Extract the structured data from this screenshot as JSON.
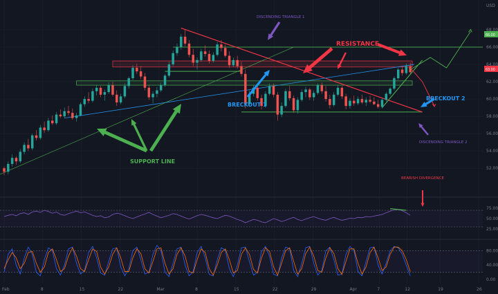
{
  "chart_data": {
    "type": "candlestick",
    "price_axis": {
      "unit": "USD",
      "ticks": [
        "68.00",
        "66.00",
        "64.00",
        "62.00",
        "60.00",
        "58.00",
        "56.00",
        "54.00",
        "52.00"
      ],
      "ylim": [
        50.5,
        69.2
      ]
    },
    "time_axis": {
      "ticks": [
        "Feb",
        "8",
        "15",
        "22",
        "Mar",
        "8",
        "15",
        "22",
        "29",
        "Apr",
        "7",
        "12",
        "19",
        "26"
      ],
      "xlim": [
        0,
        118
      ]
    },
    "last_price_labels": {
      "upper": "66.00",
      "current": "63.00"
    },
    "candles": [
      [
        0,
        52.0,
        52.2,
        51.2,
        51.6
      ],
      [
        1,
        51.6,
        52.8,
        51.3,
        52.5
      ],
      [
        2,
        52.5,
        53.6,
        52.2,
        53.2
      ],
      [
        3,
        53.2,
        53.4,
        52.4,
        52.8
      ],
      [
        4,
        52.8,
        54.2,
        52.6,
        53.9
      ],
      [
        5,
        53.9,
        55.0,
        53.6,
        54.7
      ],
      [
        6,
        54.7,
        55.4,
        54.0,
        54.3
      ],
      [
        7,
        54.3,
        56.0,
        54.1,
        55.8
      ],
      [
        8,
        55.8,
        56.4,
        55.2,
        55.5
      ],
      [
        9,
        55.5,
        57.0,
        55.3,
        56.7
      ],
      [
        10,
        56.7,
        57.4,
        56.1,
        56.4
      ],
      [
        11,
        56.4,
        57.8,
        56.2,
        57.5
      ],
      [
        12,
        57.5,
        58.1,
        57.0,
        57.2
      ],
      [
        13,
        57.2,
        58.5,
        57.0,
        58.2
      ],
      [
        14,
        58.2,
        58.8,
        57.8,
        58.0
      ],
      [
        15,
        58.0,
        59.0,
        57.8,
        58.6
      ],
      [
        16,
        58.6,
        59.2,
        58.1,
        58.4
      ],
      [
        17,
        58.4,
        58.9,
        57.6,
        57.8
      ],
      [
        18,
        57.8,
        58.4,
        57.4,
        58.1
      ],
      [
        19,
        58.1,
        59.6,
        58.0,
        59.4
      ],
      [
        20,
        59.4,
        60.3,
        59.1,
        60.0
      ],
      [
        21,
        60.0,
        60.8,
        59.5,
        59.8
      ],
      [
        22,
        59.8,
        61.2,
        59.6,
        60.9
      ],
      [
        23,
        60.9,
        61.6,
        60.4,
        61.3
      ],
      [
        24,
        61.3,
        61.5,
        60.2,
        60.5
      ],
      [
        25,
        60.5,
        61.1,
        59.8,
        60.8
      ],
      [
        26,
        60.8,
        61.9,
        60.6,
        61.6
      ],
      [
        27,
        61.6,
        62.0,
        60.3,
        60.5
      ],
      [
        28,
        60.5,
        61.0,
        59.2,
        59.6
      ],
      [
        29,
        59.6,
        60.6,
        59.4,
        60.3
      ],
      [
        30,
        60.3,
        61.8,
        60.1,
        61.5
      ],
      [
        31,
        61.5,
        62.6,
        61.2,
        62.4
      ],
      [
        32,
        62.4,
        63.9,
        62.2,
        63.6
      ],
      [
        33,
        63.6,
        64.1,
        62.9,
        63.2
      ],
      [
        34,
        63.2,
        63.8,
        62.3,
        62.6
      ],
      [
        35,
        62.6,
        63.0,
        61.0,
        61.3
      ],
      [
        36,
        61.3,
        61.6,
        59.9,
        60.2
      ],
      [
        37,
        60.2,
        60.9,
        59.5,
        60.6
      ],
      [
        38,
        60.6,
        61.4,
        60.2,
        61.0
      ],
      [
        39,
        61.0,
        61.9,
        60.8,
        61.6
      ],
      [
        40,
        61.6,
        62.9,
        61.4,
        62.7
      ],
      [
        41,
        62.7,
        64.3,
        62.5,
        64.0
      ],
      [
        42,
        64.0,
        65.6,
        63.8,
        65.3
      ],
      [
        43,
        65.3,
        66.4,
        65.0,
        66.0
      ],
      [
        44,
        66.0,
        67.5,
        65.7,
        67.2
      ],
      [
        45,
        67.2,
        68.0,
        66.1,
        66.4
      ],
      [
        46,
        66.4,
        66.8,
        64.8,
        65.1
      ],
      [
        47,
        65.1,
        65.8,
        63.8,
        64.2
      ],
      [
        48,
        64.2,
        64.8,
        63.4,
        64.5
      ],
      [
        49,
        64.5,
        65.8,
        64.3,
        65.5
      ],
      [
        50,
        65.5,
        66.2,
        64.9,
        65.2
      ],
      [
        51,
        65.2,
        65.6,
        64.1,
        64.4
      ],
      [
        52,
        64.4,
        65.4,
        64.2,
        65.1
      ],
      [
        53,
        65.1,
        66.6,
        64.9,
        66.3
      ],
      [
        54,
        66.3,
        66.8,
        65.5,
        65.9
      ],
      [
        55,
        65.9,
        66.3,
        64.8,
        65.0
      ],
      [
        56,
        65.0,
        65.5,
        63.6,
        63.9
      ],
      [
        57,
        63.9,
        64.8,
        63.7,
        64.5
      ],
      [
        58,
        64.5,
        65.0,
        63.5,
        63.8
      ],
      [
        59,
        63.8,
        64.3,
        62.6,
        62.9
      ],
      [
        60,
        62.9,
        63.4,
        58.9,
        59.4
      ],
      [
        61,
        59.4,
        61.0,
        59.1,
        60.6
      ],
      [
        62,
        60.6,
        61.6,
        60.3,
        61.3
      ],
      [
        63,
        61.3,
        61.7,
        59.8,
        60.1
      ],
      [
        64,
        60.1,
        60.5,
        58.8,
        59.2
      ],
      [
        65,
        59.2,
        60.9,
        59.0,
        60.6
      ],
      [
        66,
        60.6,
        61.8,
        60.4,
        61.5
      ],
      [
        67,
        61.5,
        61.8,
        60.2,
        60.5
      ],
      [
        68,
        60.5,
        60.8,
        57.5,
        58.2
      ],
      [
        69,
        58.2,
        59.6,
        57.9,
        59.2
      ],
      [
        70,
        59.2,
        61.2,
        59.0,
        60.9
      ],
      [
        71,
        60.9,
        61.5,
        59.8,
        60.1
      ],
      [
        72,
        60.1,
        60.4,
        58.4,
        58.7
      ],
      [
        73,
        58.7,
        60.2,
        58.3,
        59.9
      ],
      [
        74,
        59.9,
        61.1,
        59.7,
        60.8
      ],
      [
        75,
        60.8,
        61.4,
        60.2,
        61.1
      ],
      [
        76,
        61.1,
        61.3,
        59.9,
        60.2
      ],
      [
        77,
        60.2,
        61.0,
        59.8,
        60.7
      ],
      [
        78,
        60.7,
        61.8,
        60.5,
        61.6
      ],
      [
        79,
        61.6,
        61.9,
        60.6,
        60.9
      ],
      [
        80,
        60.9,
        61.5,
        59.7,
        60.0
      ],
      [
        81,
        60.0,
        60.5,
        58.9,
        59.3
      ],
      [
        82,
        59.3,
        60.8,
        59.1,
        60.5
      ],
      [
        83,
        60.5,
        61.6,
        60.3,
        61.3
      ],
      [
        84,
        61.3,
        61.5,
        60.0,
        60.3
      ],
      [
        85,
        60.3,
        60.6,
        58.8,
        59.2
      ],
      [
        86,
        59.2,
        60.1,
        58.9,
        59.8
      ],
      [
        87,
        59.8,
        60.4,
        59.2,
        59.5
      ],
      [
        88,
        59.5,
        60.3,
        59.3,
        60.0
      ],
      [
        89,
        60.0,
        60.5,
        59.4,
        59.6
      ],
      [
        90,
        59.6,
        60.2,
        59.2,
        59.9
      ],
      [
        91,
        59.9,
        60.4,
        59.5,
        59.7
      ],
      [
        92,
        59.7,
        60.2,
        59.3,
        59.4
      ],
      [
        93,
        59.4,
        59.9,
        58.9,
        59.1
      ],
      [
        94,
        59.1,
        60.1,
        58.9,
        59.9
      ],
      [
        95,
        59.9,
        60.8,
        59.7,
        60.6
      ],
      [
        96,
        60.6,
        61.4,
        60.4,
        61.2
      ],
      [
        97,
        61.2,
        62.6,
        61.0,
        62.4
      ],
      [
        98,
        62.4,
        63.6,
        62.2,
        63.4
      ],
      [
        99,
        63.4,
        63.8,
        62.7,
        63.0
      ],
      [
        100,
        63.0,
        64.1,
        62.8,
        63.8
      ],
      [
        101,
        63.8,
        64.2,
        62.9,
        63.1
      ]
    ],
    "rsi": [
      55,
      58,
      60,
      57,
      62,
      64,
      60,
      66,
      68,
      65,
      70,
      67,
      63,
      66,
      60,
      58,
      62,
      65,
      68,
      64,
      66,
      62,
      58,
      55,
      57,
      52,
      54,
      60,
      63,
      61,
      57,
      53,
      50,
      54,
      58,
      61,
      65,
      60,
      56,
      52,
      55,
      58,
      62,
      60,
      56,
      52,
      49,
      53,
      57,
      60,
      58,
      55,
      52,
      50,
      54,
      58,
      56,
      52,
      48,
      45,
      40,
      44,
      48,
      46,
      42,
      40,
      45,
      50,
      47,
      43,
      46,
      50,
      53,
      48,
      45,
      49,
      52,
      55,
      51,
      48,
      46,
      50,
      53,
      49,
      46,
      48,
      51,
      50,
      53,
      52,
      55,
      54,
      56,
      58,
      60,
      64,
      68,
      71,
      72,
      69,
      64,
      58
    ],
    "stoch_k": [
      20,
      70,
      85,
      40,
      15,
      60,
      90,
      70,
      20,
      10,
      55,
      88,
      80,
      30,
      12,
      40,
      85,
      90,
      45,
      15,
      25,
      75,
      92,
      60,
      18,
      12,
      50,
      85,
      88,
      35,
      10,
      30,
      80,
      90,
      55,
      15,
      20,
      70,
      95,
      80,
      20,
      8,
      45,
      85,
      90,
      40,
      10,
      22,
      75,
      92,
      60,
      14,
      10,
      55,
      88,
      82,
      30,
      8,
      40,
      88,
      90,
      50,
      12,
      20,
      78,
      92,
      65,
      15,
      10,
      60,
      90,
      85,
      25,
      8,
      45,
      88,
      92,
      45,
      12,
      25,
      80,
      90,
      55,
      12,
      15,
      70,
      92,
      80,
      22,
      10,
      50,
      88,
      90,
      40,
      15,
      45,
      80,
      92,
      88,
      70,
      40,
      10
    ],
    "stoch_d": [
      30,
      55,
      75,
      60,
      30,
      45,
      75,
      78,
      45,
      20,
      35,
      75,
      85,
      55,
      22,
      30,
      65,
      88,
      65,
      30,
      22,
      55,
      85,
      78,
      35,
      15,
      35,
      70,
      88,
      60,
      22,
      22,
      60,
      85,
      72,
      30,
      18,
      50,
      85,
      88,
      45,
      15,
      30,
      70,
      88,
      65,
      22,
      18,
      55,
      85,
      75,
      30,
      12,
      40,
      75,
      85,
      55,
      18,
      25,
      70,
      88,
      70,
      28,
      18,
      60,
      88,
      78,
      35,
      12,
      45,
      80,
      88,
      50,
      15,
      30,
      72,
      90,
      65,
      25,
      20,
      60,
      88,
      72,
      30,
      14,
      50,
      85,
      85,
      45,
      15,
      35,
      75,
      90,
      60,
      25,
      35,
      70,
      90,
      90,
      80,
      55,
      22
    ],
    "rsi_axis": [
      "75.00",
      "50.00",
      "25.00"
    ],
    "stoch_axis": [
      "80.00",
      "40.00",
      "0.00"
    ]
  },
  "annotations": {
    "descending_triangle_1": "DISCENDING TRIANGLE 1",
    "descending_triangle_2": "DISCENDING TRIANGLE 2",
    "resistance": "RESISTANCE",
    "breakout_1": "BRECKOUT 1",
    "breakout_2": "BRECKOUT 2",
    "support_line": "SUPPORT LINE",
    "bearish_divergence": "BEARISH DIVERGENCE"
  },
  "colors": {
    "background": "#131722",
    "bull": "#26a69a",
    "bear": "#ef5350",
    "resistance": "#f23645",
    "support": "#4caf50",
    "trend_blue": "#2196f3",
    "purple": "#7e57c2",
    "rsi": "#7e57c2",
    "stoch_k": "#2962ff",
    "stoch_d": "#ff6d00",
    "text": "#787b86"
  }
}
